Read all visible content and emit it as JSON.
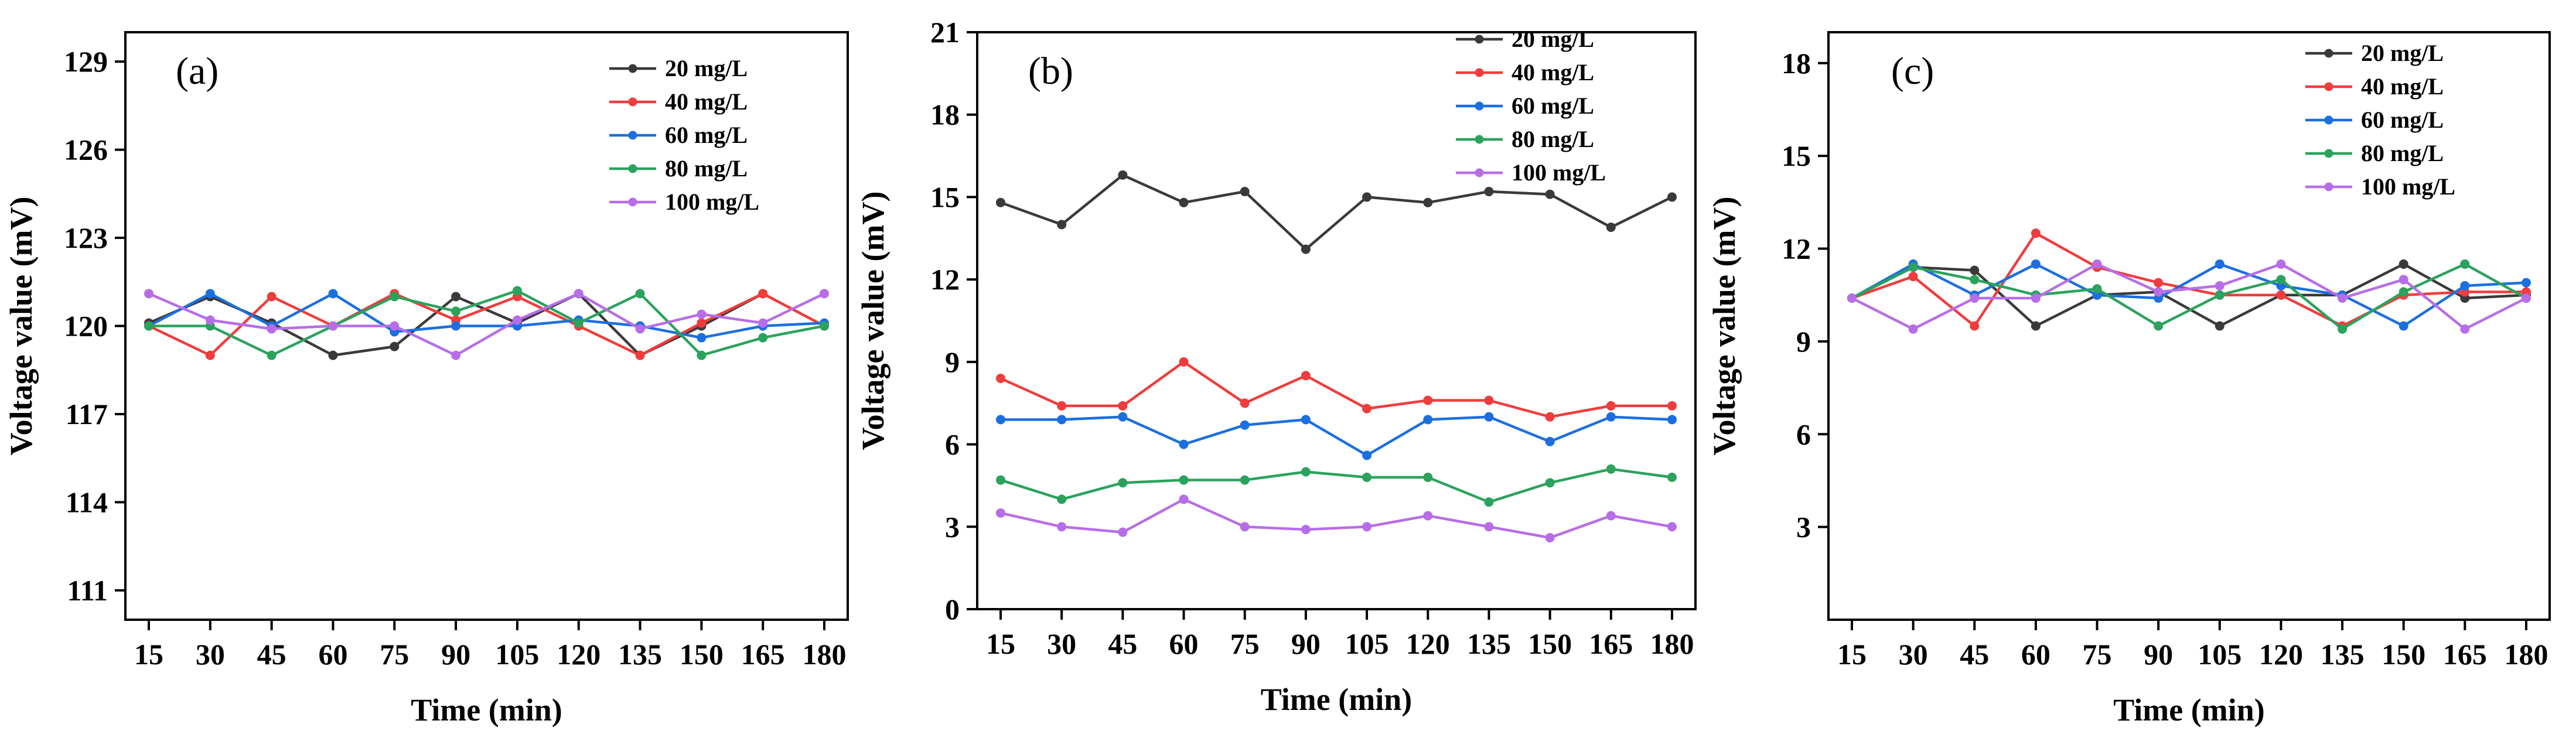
{
  "chart_data": [
    {
      "type": "line",
      "panel_label": "(a)",
      "xlabel": "Time (min)",
      "ylabel": "Voltage value (mV)",
      "x": [
        15,
        30,
        45,
        60,
        75,
        90,
        105,
        120,
        135,
        150,
        165,
        180
      ],
      "xtick_labels": [
        "15",
        "30",
        "45",
        "60",
        "75",
        "90",
        "105",
        "120",
        "135",
        "150",
        "165",
        "180"
      ],
      "ylim": [
        110,
        130
      ],
      "yticks": [
        111,
        114,
        117,
        120,
        123,
        126,
        129
      ],
      "ytick_labels": [
        "111",
        "114",
        "117",
        "120",
        "123",
        "126",
        "129"
      ],
      "legend_position": "top-right",
      "series": [
        {
          "name": "20 mg/L",
          "color": "#3a3a3a",
          "values": [
            120.1,
            121.0,
            120.1,
            119.0,
            119.3,
            121.0,
            120.1,
            121.1,
            119.0,
            120.0,
            121.1,
            120.0
          ]
        },
        {
          "name": "40 mg/L",
          "color": "#f03c3c",
          "values": [
            120.0,
            119.0,
            121.0,
            120.0,
            121.1,
            120.2,
            121.0,
            120.0,
            119.0,
            120.1,
            121.1,
            120.0
          ]
        },
        {
          "name": "60 mg/L",
          "color": "#1b6fe0",
          "values": [
            120.0,
            121.1,
            120.0,
            121.1,
            119.8,
            120.0,
            120.0,
            120.2,
            120.0,
            119.6,
            120.0,
            120.1
          ]
        },
        {
          "name": "80 mg/L",
          "color": "#2ba25d",
          "values": [
            120.0,
            120.0,
            119.0,
            120.0,
            121.0,
            120.5,
            121.2,
            120.1,
            121.1,
            119.0,
            119.6,
            120.0
          ]
        },
        {
          "name": "100 mg/L",
          "color": "#b76de8",
          "values": [
            121.1,
            120.2,
            119.9,
            120.0,
            120.0,
            119.0,
            120.2,
            121.1,
            119.9,
            120.4,
            120.1,
            121.1
          ]
        }
      ]
    },
    {
      "type": "line",
      "panel_label": "(b)",
      "xlabel": "Time (min)",
      "ylabel": "Voltage value (mV)",
      "x": [
        15,
        30,
        45,
        60,
        75,
        90,
        105,
        120,
        135,
        150,
        165,
        180
      ],
      "xtick_labels": [
        "15",
        "30",
        "45",
        "60",
        "75",
        "90",
        "105",
        "120",
        "135",
        "150",
        "165",
        "180"
      ],
      "ylim": [
        0,
        21
      ],
      "yticks": [
        0,
        3,
        6,
        9,
        12,
        15,
        18,
        21
      ],
      "ytick_labels": [
        "0",
        "3",
        "6",
        "9",
        "12",
        "15",
        "18",
        "21"
      ],
      "legend_position": "top-right",
      "series": [
        {
          "name": "20 mg/L",
          "color": "#3a3a3a",
          "values": [
            14.8,
            14.0,
            15.8,
            14.8,
            15.2,
            13.1,
            15.0,
            14.8,
            15.2,
            15.1,
            13.9,
            15.0
          ]
        },
        {
          "name": "40 mg/L",
          "color": "#f03c3c",
          "values": [
            8.4,
            7.4,
            7.4,
            9.0,
            7.5,
            8.5,
            7.3,
            7.6,
            7.6,
            7.0,
            7.4,
            7.4
          ]
        },
        {
          "name": "60 mg/L",
          "color": "#1b6fe0",
          "values": [
            6.9,
            6.9,
            7.0,
            6.0,
            6.7,
            6.9,
            5.6,
            6.9,
            7.0,
            6.1,
            7.0,
            6.9
          ]
        },
        {
          "name": "80 mg/L",
          "color": "#2ba25d",
          "values": [
            4.7,
            4.0,
            4.6,
            4.7,
            4.7,
            5.0,
            4.8,
            4.8,
            3.9,
            4.6,
            5.1,
            4.8
          ]
        },
        {
          "name": "100 mg/L",
          "color": "#b76de8",
          "values": [
            3.5,
            3.0,
            2.8,
            4.0,
            3.0,
            2.9,
            3.0,
            3.4,
            3.0,
            2.6,
            3.4,
            3.0
          ]
        }
      ]
    },
    {
      "type": "line",
      "panel_label": "(c)",
      "xlabel": "Time (min)",
      "ylabel": "Voltage value (mV)",
      "x": [
        15,
        30,
        45,
        60,
        75,
        90,
        105,
        120,
        135,
        150,
        165,
        180
      ],
      "xtick_labels": [
        "15",
        "30",
        "45",
        "60",
        "75",
        "90",
        "105",
        "120",
        "135",
        "150",
        "165",
        "180"
      ],
      "ylim": [
        0,
        19
      ],
      "yticks": [
        3,
        6,
        9,
        12,
        15,
        18
      ],
      "ytick_labels": [
        "3",
        "6",
        "9",
        "12",
        "15",
        "18"
      ],
      "legend_position": "top-right",
      "series": [
        {
          "name": "20 mg/L",
          "color": "#3a3a3a",
          "values": [
            10.4,
            11.4,
            11.3,
            9.5,
            10.5,
            10.6,
            9.5,
            10.5,
            10.5,
            11.5,
            10.4,
            10.5
          ]
        },
        {
          "name": "40 mg/L",
          "color": "#f03c3c",
          "values": [
            10.4,
            11.1,
            9.5,
            12.5,
            11.4,
            10.9,
            10.5,
            10.5,
            9.5,
            10.5,
            10.6,
            10.6
          ]
        },
        {
          "name": "60 mg/L",
          "color": "#1b6fe0",
          "values": [
            10.4,
            11.5,
            10.5,
            11.5,
            10.5,
            10.4,
            11.5,
            10.8,
            10.5,
            9.5,
            10.8,
            10.9
          ]
        },
        {
          "name": "80 mg/L",
          "color": "#2ba25d",
          "values": [
            10.4,
            11.4,
            11.0,
            10.5,
            10.7,
            9.5,
            10.5,
            11.0,
            9.4,
            10.6,
            11.5,
            10.4
          ]
        },
        {
          "name": "100 mg/L",
          "color": "#b76de8",
          "values": [
            10.4,
            9.4,
            10.4,
            10.4,
            11.5,
            10.6,
            10.8,
            11.5,
            10.4,
            11.0,
            9.4,
            10.4
          ]
        }
      ]
    }
  ]
}
